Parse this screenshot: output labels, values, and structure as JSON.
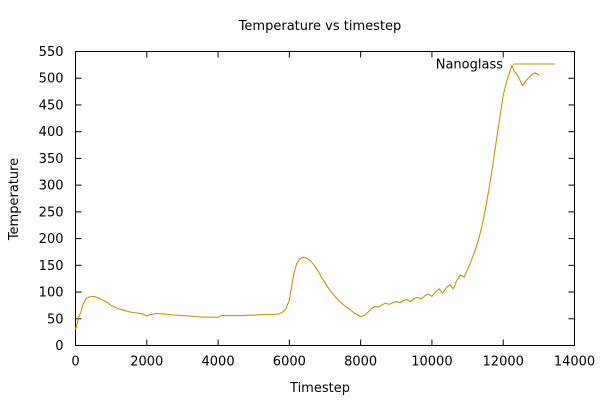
{
  "chart_data": {
    "type": "line",
    "title": "Temperature vs timestep",
    "xlabel": "Timestep",
    "ylabel": "Temperature",
    "xlim": [
      0,
      14000
    ],
    "ylim": [
      0,
      550
    ],
    "xticks": [
      0,
      2000,
      4000,
      6000,
      8000,
      10000,
      12000,
      14000
    ],
    "yticks": [
      0,
      50,
      100,
      150,
      200,
      250,
      300,
      350,
      400,
      450,
      500,
      550
    ],
    "grid": false,
    "legend_position": "top-right",
    "series": [
      {
        "name": "Nanoglass",
        "color": "#c89600",
        "points": [
          [
            0,
            30
          ],
          [
            50,
            42
          ],
          [
            100,
            55
          ],
          [
            150,
            62
          ],
          [
            200,
            75
          ],
          [
            250,
            82
          ],
          [
            300,
            88
          ],
          [
            400,
            91
          ],
          [
            500,
            92
          ],
          [
            600,
            90
          ],
          [
            700,
            87
          ],
          [
            800,
            84
          ],
          [
            900,
            80
          ],
          [
            1000,
            75
          ],
          [
            1100,
            72
          ],
          [
            1200,
            69
          ],
          [
            1300,
            67
          ],
          [
            1400,
            65
          ],
          [
            1500,
            63
          ],
          [
            1600,
            62
          ],
          [
            1700,
            61
          ],
          [
            1800,
            60
          ],
          [
            1900,
            59
          ],
          [
            2000,
            55
          ],
          [
            2100,
            58
          ],
          [
            2200,
            59
          ],
          [
            2300,
            60
          ],
          [
            2400,
            59
          ],
          [
            2500,
            59
          ],
          [
            2600,
            58
          ],
          [
            2800,
            57
          ],
          [
            3000,
            56
          ],
          [
            3200,
            55
          ],
          [
            3400,
            54
          ],
          [
            3600,
            53
          ],
          [
            3800,
            53
          ],
          [
            4000,
            53
          ],
          [
            4100,
            56
          ],
          [
            4300,
            56
          ],
          [
            4600,
            56
          ],
          [
            5000,
            57
          ],
          [
            5300,
            58
          ],
          [
            5500,
            58
          ],
          [
            5700,
            59
          ],
          [
            5800,
            62
          ],
          [
            5900,
            68
          ],
          [
            6000,
            85
          ],
          [
            6050,
            105
          ],
          [
            6100,
            125
          ],
          [
            6150,
            140
          ],
          [
            6200,
            152
          ],
          [
            6250,
            158
          ],
          [
            6300,
            162
          ],
          [
            6350,
            164
          ],
          [
            6400,
            165
          ],
          [
            6500,
            163
          ],
          [
            6600,
            158
          ],
          [
            6700,
            150
          ],
          [
            6800,
            140
          ],
          [
            6900,
            128
          ],
          [
            7000,
            117
          ],
          [
            7100,
            107
          ],
          [
            7200,
            98
          ],
          [
            7300,
            90
          ],
          [
            7400,
            83
          ],
          [
            7500,
            77
          ],
          [
            7600,
            72
          ],
          [
            7700,
            67
          ],
          [
            7800,
            62
          ],
          [
            7900,
            58
          ],
          [
            8000,
            54
          ],
          [
            8100,
            56
          ],
          [
            8200,
            62
          ],
          [
            8300,
            69
          ],
          [
            8400,
            73
          ],
          [
            8500,
            72
          ],
          [
            8600,
            76
          ],
          [
            8700,
            79
          ],
          [
            8800,
            77
          ],
          [
            8900,
            80
          ],
          [
            9000,
            82
          ],
          [
            9100,
            80
          ],
          [
            9200,
            84
          ],
          [
            9300,
            86
          ],
          [
            9400,
            82
          ],
          [
            9500,
            88
          ],
          [
            9600,
            90
          ],
          [
            9700,
            87
          ],
          [
            9800,
            93
          ],
          [
            9900,
            96
          ],
          [
            10000,
            92
          ],
          [
            10100,
            100
          ],
          [
            10200,
            106
          ],
          [
            10300,
            98
          ],
          [
            10400,
            108
          ],
          [
            10500,
            114
          ],
          [
            10600,
            106
          ],
          [
            10700,
            122
          ],
          [
            10800,
            132
          ],
          [
            10900,
            128
          ],
          [
            11000,
            142
          ],
          [
            11100,
            158
          ],
          [
            11200,
            176
          ],
          [
            11300,
            196
          ],
          [
            11400,
            222
          ],
          [
            11500,
            255
          ],
          [
            11600,
            292
          ],
          [
            11700,
            334
          ],
          [
            11800,
            380
          ],
          [
            11900,
            425
          ],
          [
            12000,
            468
          ],
          [
            12100,
            495
          ],
          [
            12200,
            515
          ],
          [
            12250,
            524
          ],
          [
            12300,
            514
          ],
          [
            12400,
            506
          ],
          [
            12500,
            492
          ],
          [
            12550,
            486
          ],
          [
            12600,
            492
          ],
          [
            12700,
            500
          ],
          [
            12800,
            507
          ],
          [
            12900,
            510
          ],
          [
            13000,
            506
          ]
        ]
      }
    ]
  }
}
